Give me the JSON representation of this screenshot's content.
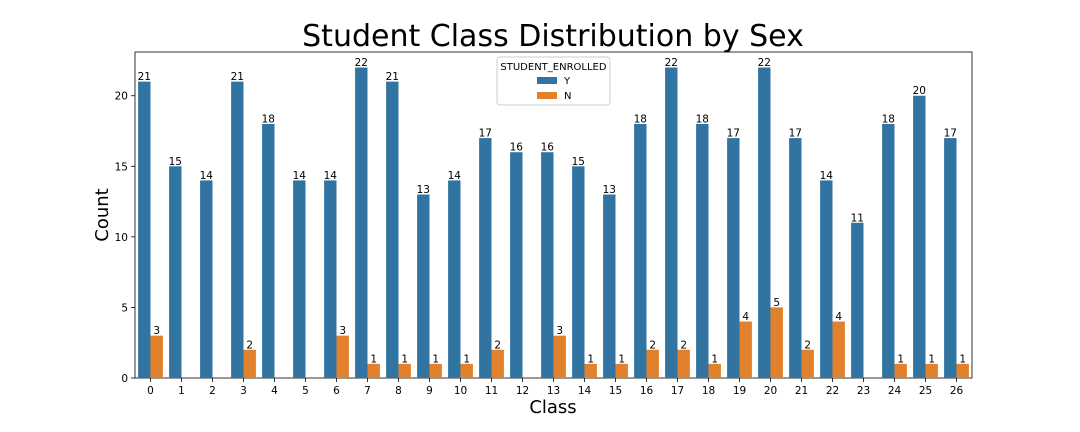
{
  "chart_data": {
    "type": "bar",
    "title": "Student Class Distribution by Sex",
    "xlabel": "Class",
    "ylabel": "Count",
    "ylim": [
      0,
      23.1
    ],
    "yticks": [
      0,
      5,
      10,
      15,
      20
    ],
    "grid": false,
    "legend": {
      "title": "STUDENT_ENROLLED",
      "placement": "top-center"
    },
    "categories": [
      "0",
      "1",
      "2",
      "3",
      "4",
      "5",
      "6",
      "7",
      "8",
      "9",
      "10",
      "11",
      "12",
      "13",
      "14",
      "15",
      "16",
      "17",
      "18",
      "19",
      "20",
      "21",
      "22",
      "23",
      "24",
      "25",
      "26"
    ],
    "series": [
      {
        "name": "Y",
        "color": "#3274a1",
        "values": [
          21,
          15,
          14,
          21,
          18,
          14,
          14,
          22,
          21,
          13,
          14,
          17,
          16,
          16,
          15,
          13,
          18,
          22,
          18,
          17,
          22,
          17,
          14,
          11,
          18,
          20,
          17
        ]
      },
      {
        "name": "N",
        "color": "#e1812c",
        "values": [
          3,
          null,
          null,
          2,
          null,
          null,
          3,
          1,
          1,
          1,
          1,
          2,
          null,
          3,
          1,
          1,
          2,
          2,
          1,
          4,
          5,
          2,
          4,
          null,
          1,
          1,
          1
        ]
      }
    ]
  }
}
